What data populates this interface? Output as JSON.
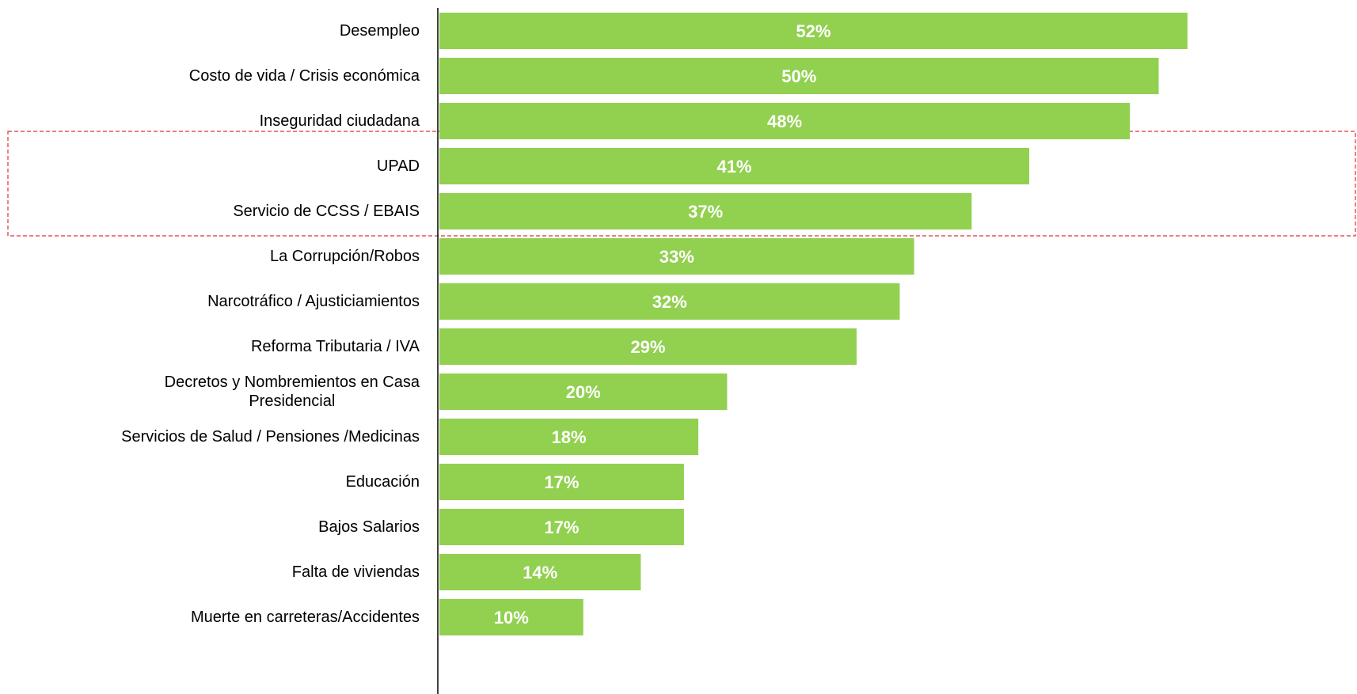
{
  "chart_data": {
    "type": "bar",
    "orientation": "horizontal",
    "categories": [
      "Desempleo",
      "Costo de vida / Crisis económica",
      "Inseguridad ciudadana",
      "UPAD",
      "Servicio de CCSS / EBAIS",
      "La Corrupción/Robos",
      "Narcotráfico / Ajusticiamientos",
      "Reforma Tributaria / IVA",
      "Decretos  y Nombremientos en Casa\nPresidencial",
      "Servicios de Salud / Pensiones /Medicinas",
      "Educación",
      "Bajos Salarios",
      "Falta de viviendas",
      "Muerte en carreteras/Accidentes"
    ],
    "values": [
      52,
      50,
      48,
      41,
      37,
      33,
      32,
      29,
      20,
      18,
      17,
      17,
      14,
      10
    ],
    "value_labels": [
      "52%",
      "50%",
      "48%",
      "41%",
      "37%",
      "33%",
      "32%",
      "29%",
      "20%",
      "18%",
      "17%",
      "17%",
      "14%",
      "10%"
    ],
    "color": "#92d050",
    "xlim": [
      0,
      55
    ]
  }
}
